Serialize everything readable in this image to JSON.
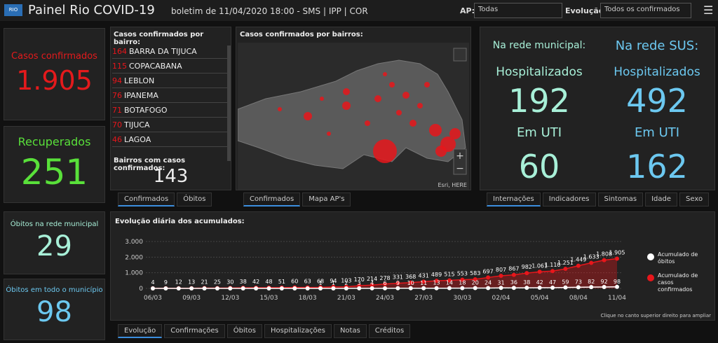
{
  "header": {
    "title": "Painel Rio COVID-19",
    "subtitle": "boletim de 11/04/2020 18:00 - SMS | IPP | COR",
    "ap_label": "AP:",
    "ap_value": "Todas",
    "evol_label": "Evolução:",
    "evol_value": "Todos os confirmados"
  },
  "kpis": [
    {
      "label": "Casos confirmados",
      "value": "1.905"
    },
    {
      "label": "Recuperados",
      "value": "251"
    },
    {
      "label": "Óbitos na rede municipal",
      "value": "29"
    },
    {
      "label": "Óbitos em todo o município",
      "value": "98"
    }
  ],
  "neighborhoods": {
    "title": "Casos confirmados por bairro:",
    "items": [
      {
        "count": "164",
        "name": "BARRA DA TIJUCA"
      },
      {
        "count": "115",
        "name": "COPACABANA"
      },
      {
        "count": "94",
        "name": "LEBLON"
      },
      {
        "count": "76",
        "name": "IPANEMA"
      },
      {
        "count": "71",
        "name": "BOTAFOGO"
      },
      {
        "count": "70",
        "name": "TIJUCA"
      },
      {
        "count": "46",
        "name": "LAGOA"
      }
    ],
    "total_label": "Bairros com casos confirmados:",
    "total": "143",
    "tabs": [
      "Confirmados",
      "Óbitos"
    ]
  },
  "map": {
    "title": "Casos confirmados por bairros:",
    "attribution": "Esri, HERE",
    "tabs": [
      "Confirmados",
      "Mapa AP's"
    ]
  },
  "hospital": {
    "municipal": {
      "title": "Na rede municipal:",
      "hosp_label": "Hospitalizados",
      "hosp": "192",
      "uti_label": "Em UTI",
      "uti": "60"
    },
    "sus": {
      "title": "Na rede SUS:",
      "hosp_label": "Hospitalizados",
      "hosp": "492",
      "uti_label": "Em UTI",
      "uti": "162"
    },
    "tabs": [
      "Internações",
      "Indicadores",
      "Sintomas",
      "Idade",
      "Sexo"
    ]
  },
  "chart_data": {
    "type": "line",
    "title": "Evolução diária dos acumulados:",
    "categories": [
      "06/03",
      null,
      null,
      "09/03",
      null,
      null,
      "12/03",
      null,
      null,
      "15/03",
      null,
      null,
      "18/03",
      null,
      null,
      "21/03",
      null,
      null,
      "24/03",
      null,
      null,
      "27/03",
      null,
      null,
      "30/03",
      null,
      null,
      "02/04",
      null,
      null,
      "05/04",
      null,
      null,
      "08/04",
      null,
      null,
      "11/04"
    ],
    "series": [
      {
        "name": "Acumulado de óbitos",
        "color": "#ffffff",
        "values": [
          0,
          0,
          0,
          0,
          0,
          0,
          0,
          0,
          0,
          0,
          0,
          0,
          0,
          1,
          1,
          2,
          3,
          4,
          6,
          9,
          10,
          11,
          13,
          14,
          18,
          20,
          24,
          31,
          36,
          38,
          42,
          47,
          59,
          73,
          82,
          92,
          98
        ]
      },
      {
        "name": "Acumulado de casos confirmados",
        "color": "#e8161b",
        "values": [
          4,
          9,
          12,
          13,
          21,
          25,
          30,
          38,
          42,
          48,
          51,
          60,
          63,
          68,
          94,
          103,
          170,
          214,
          278,
          331,
          368,
          431,
          489,
          515,
          553,
          583,
          697,
          807,
          867,
          982,
          1061,
          1110,
          1251,
          1449,
          1633,
          1808,
          1905
        ],
        "value_labels": [
          "4",
          "9",
          "12",
          "13",
          "21",
          "25",
          "30",
          "38",
          "42",
          "48",
          "51",
          "60",
          "63",
          "68",
          "94",
          "103",
          "170",
          "214",
          "278",
          "331",
          "368",
          "431",
          "489",
          "515",
          "553",
          "583",
          "697",
          "807",
          "867",
          "982",
          "1.061",
          "1.110",
          "1.251",
          "1.449",
          "1.633",
          "1.808",
          "1.905"
        ]
      }
    ],
    "ylim": [
      0,
      3000
    ],
    "yticks": [
      0,
      {
        "value": 1000,
        "label": "1.000"
      },
      {
        "value": 2000,
        "label": "2.000"
      },
      {
        "value": 3000,
        "label": "3.000"
      }
    ],
    "grid": true,
    "legend": "right",
    "note": "Clique no canto superior direito para ampliar"
  },
  "bottom_tabs": [
    "Evolução",
    "Confirmações",
    "Óbitos",
    "Hospitalizações",
    "Notas",
    "Créditos"
  ]
}
